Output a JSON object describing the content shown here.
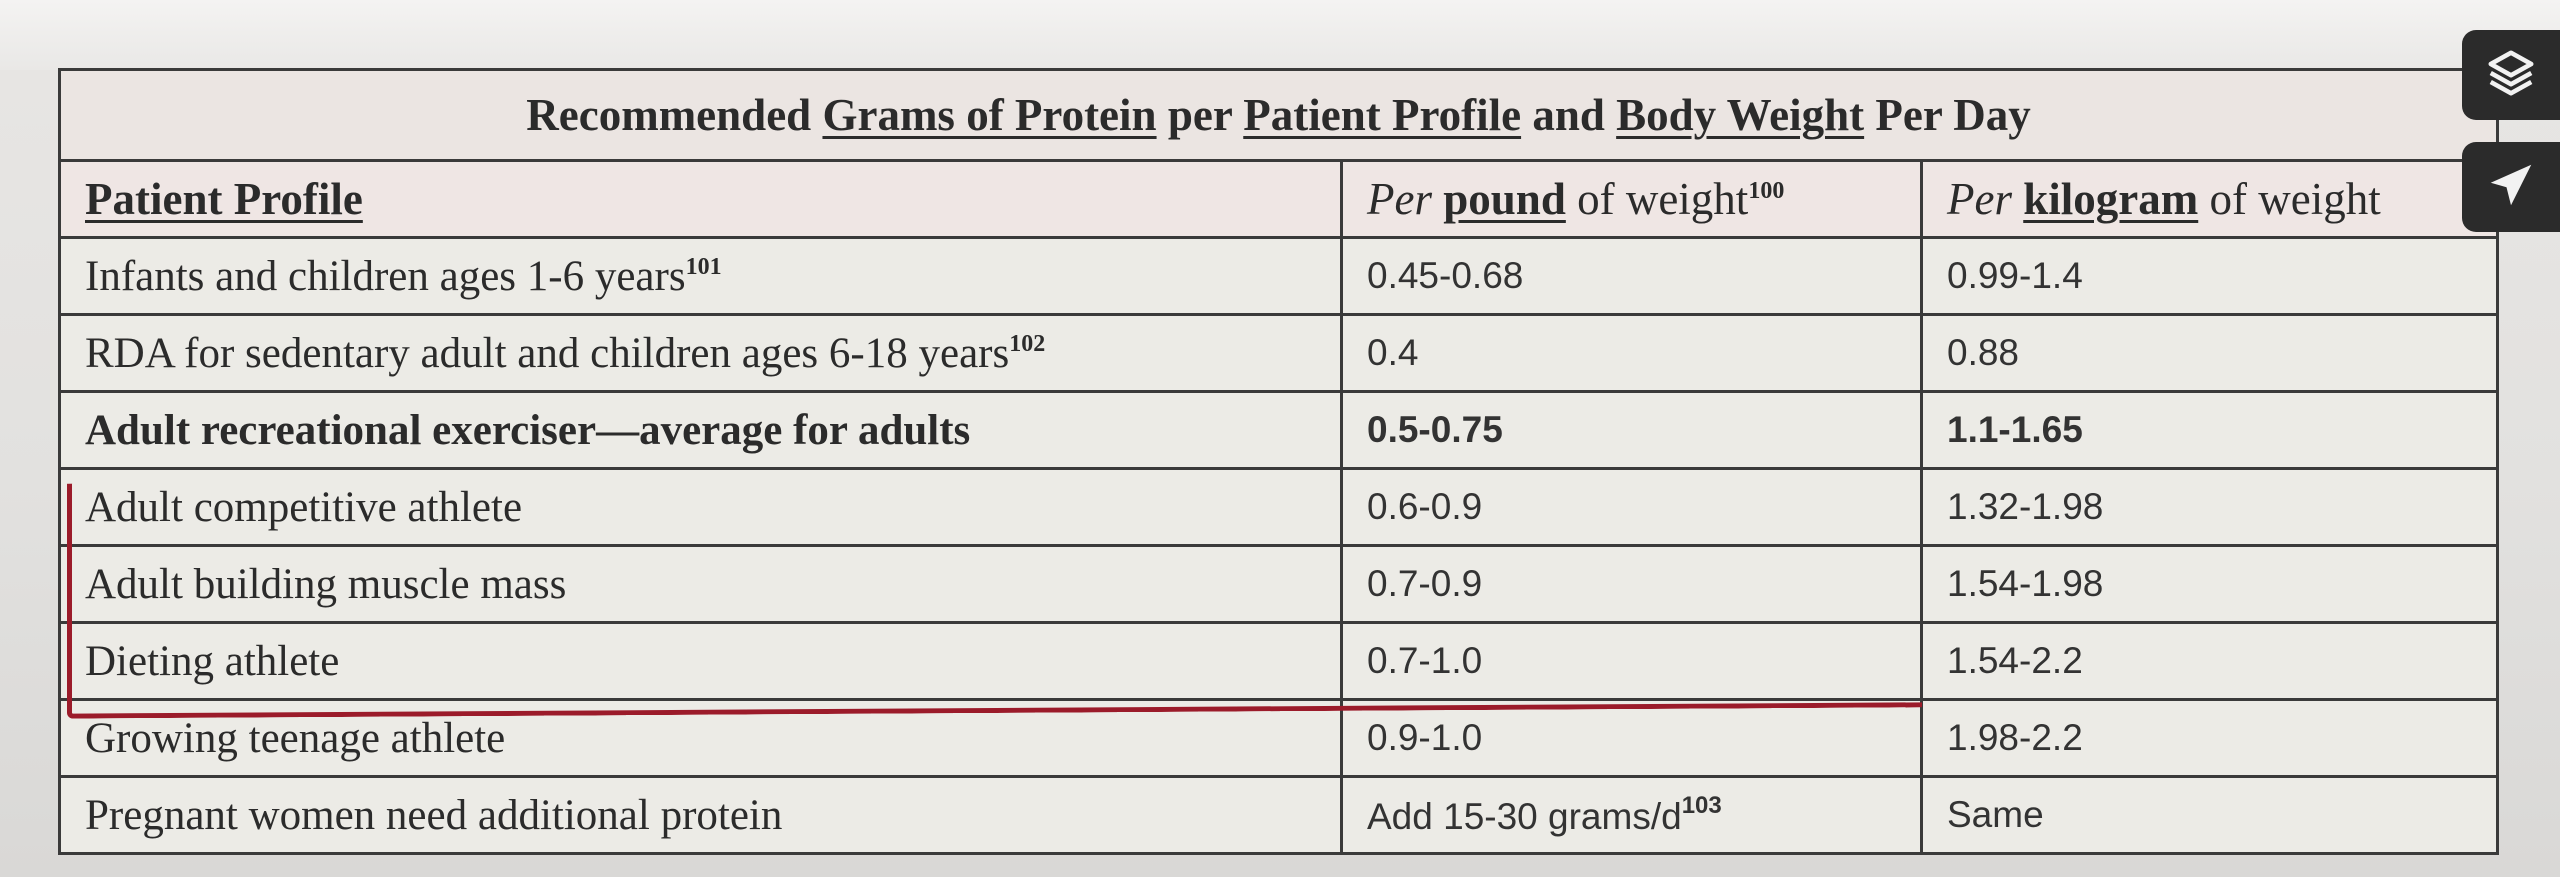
{
  "table": {
    "title_parts": [
      {
        "text": "Recommended ",
        "underline": false
      },
      {
        "text": "Grams of Protein",
        "underline": true
      },
      {
        "text": " per ",
        "underline": false
      },
      {
        "text": "Patient Profile",
        "underline": true
      },
      {
        "text": " and ",
        "underline": false
      },
      {
        "text": "Body Weight",
        "underline": true
      },
      {
        "text": " Per Day",
        "underline": false
      }
    ],
    "headers": {
      "profile": "Patient Profile",
      "pound_pre": "Per ",
      "pound_key": "pound",
      "pound_post": " of weight",
      "pound_sup": "100",
      "kg_pre": "Per ",
      "kg_key": "kilogram",
      "kg_post": " of weight"
    },
    "rows": [
      {
        "profile": "Infants and children ages 1-6 years",
        "sup": "101",
        "per_pound": "0.45-0.68",
        "per_kg": "0.99-1.4",
        "bold": false
      },
      {
        "profile": "RDA for sedentary adult and children ages 6-18 years",
        "sup": "102",
        "per_pound": "0.4",
        "per_kg": "0.88",
        "bold": false
      },
      {
        "profile": "Adult recreational exerciser—average for adults",
        "sup": "",
        "per_pound": "0.5-0.75",
        "per_kg": "1.1-1.65",
        "bold": true
      },
      {
        "profile": "Adult competitive athlete",
        "sup": "",
        "per_pound": "0.6-0.9",
        "per_kg": "1.32-1.98",
        "bold": false
      },
      {
        "profile": "Adult building muscle mass",
        "sup": "",
        "per_pound": "0.7-0.9",
        "per_kg": "1.54-1.98",
        "bold": false
      },
      {
        "profile": "Dieting athlete",
        "sup": "",
        "per_pound": "0.7-1.0",
        "per_kg": "1.54-2.2",
        "bold": false
      },
      {
        "profile": "Growing teenage athlete",
        "sup": "",
        "per_pound": "0.9-1.0",
        "per_kg": "1.98-2.2",
        "bold": false
      },
      {
        "profile": "Pregnant women need additional protein",
        "sup": "",
        "per_pound": "Add 15-30 grams/d",
        "per_pound_sup": "103",
        "per_kg": "Same",
        "bold": false
      }
    ]
  },
  "side_buttons": [
    {
      "icon": "layers-icon"
    },
    {
      "icon": "send-icon"
    }
  ],
  "colors": {
    "annotation_red": "#9b1b2a",
    "button_dark": "#2b2b2b"
  }
}
